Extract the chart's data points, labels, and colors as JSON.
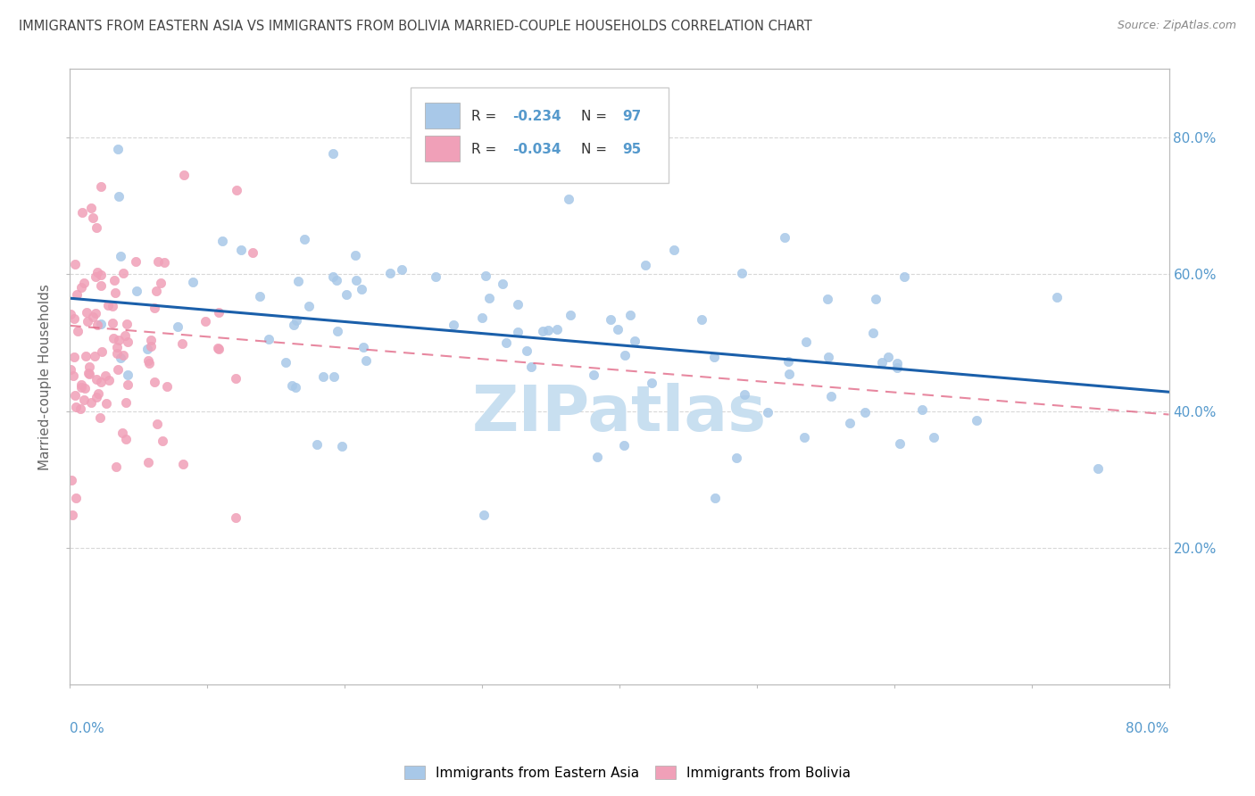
{
  "title": "IMMIGRANTS FROM EASTERN ASIA VS IMMIGRANTS FROM BOLIVIA MARRIED-COUPLE HOUSEHOLDS CORRELATION CHART",
  "source": "Source: ZipAtlas.com",
  "ylabel": "Married-couple Households",
  "legend_r1": "-0.234",
  "legend_n1": "97",
  "legend_r2": "-0.034",
  "legend_n2": "95",
  "color_eastern_asia": "#a8c8e8",
  "color_bolivia": "#f0a0b8",
  "trendline_color_eastern_asia": "#1a5faa",
  "trendline_color_bolivia": "#e06080",
  "background_color": "#ffffff",
  "axis_color": "#bbbbbb",
  "label_color": "#5599cc",
  "watermark": "ZIPatlas",
  "watermark_color": "#c8dff0",
  "ea_trend_x0": 0.0,
  "ea_trend_x1": 0.8,
  "ea_trend_y0": 0.565,
  "ea_trend_y1": 0.428,
  "bo_trend_x0": 0.0,
  "bo_trend_x1": 0.8,
  "bo_trend_y0": 0.525,
  "bo_trend_y1": 0.395,
  "xlim_min": 0.0,
  "xlim_max": 0.8,
  "ylim_min": 0.0,
  "ylim_max": 0.9,
  "yticks": [
    0.2,
    0.4,
    0.6,
    0.8
  ],
  "ytick_labels": [
    "20.0%",
    "40.0%",
    "60.0%",
    "80.0%"
  ],
  "xticks": [
    0.0,
    0.1,
    0.2,
    0.3,
    0.4,
    0.5,
    0.6,
    0.7,
    0.8
  ]
}
